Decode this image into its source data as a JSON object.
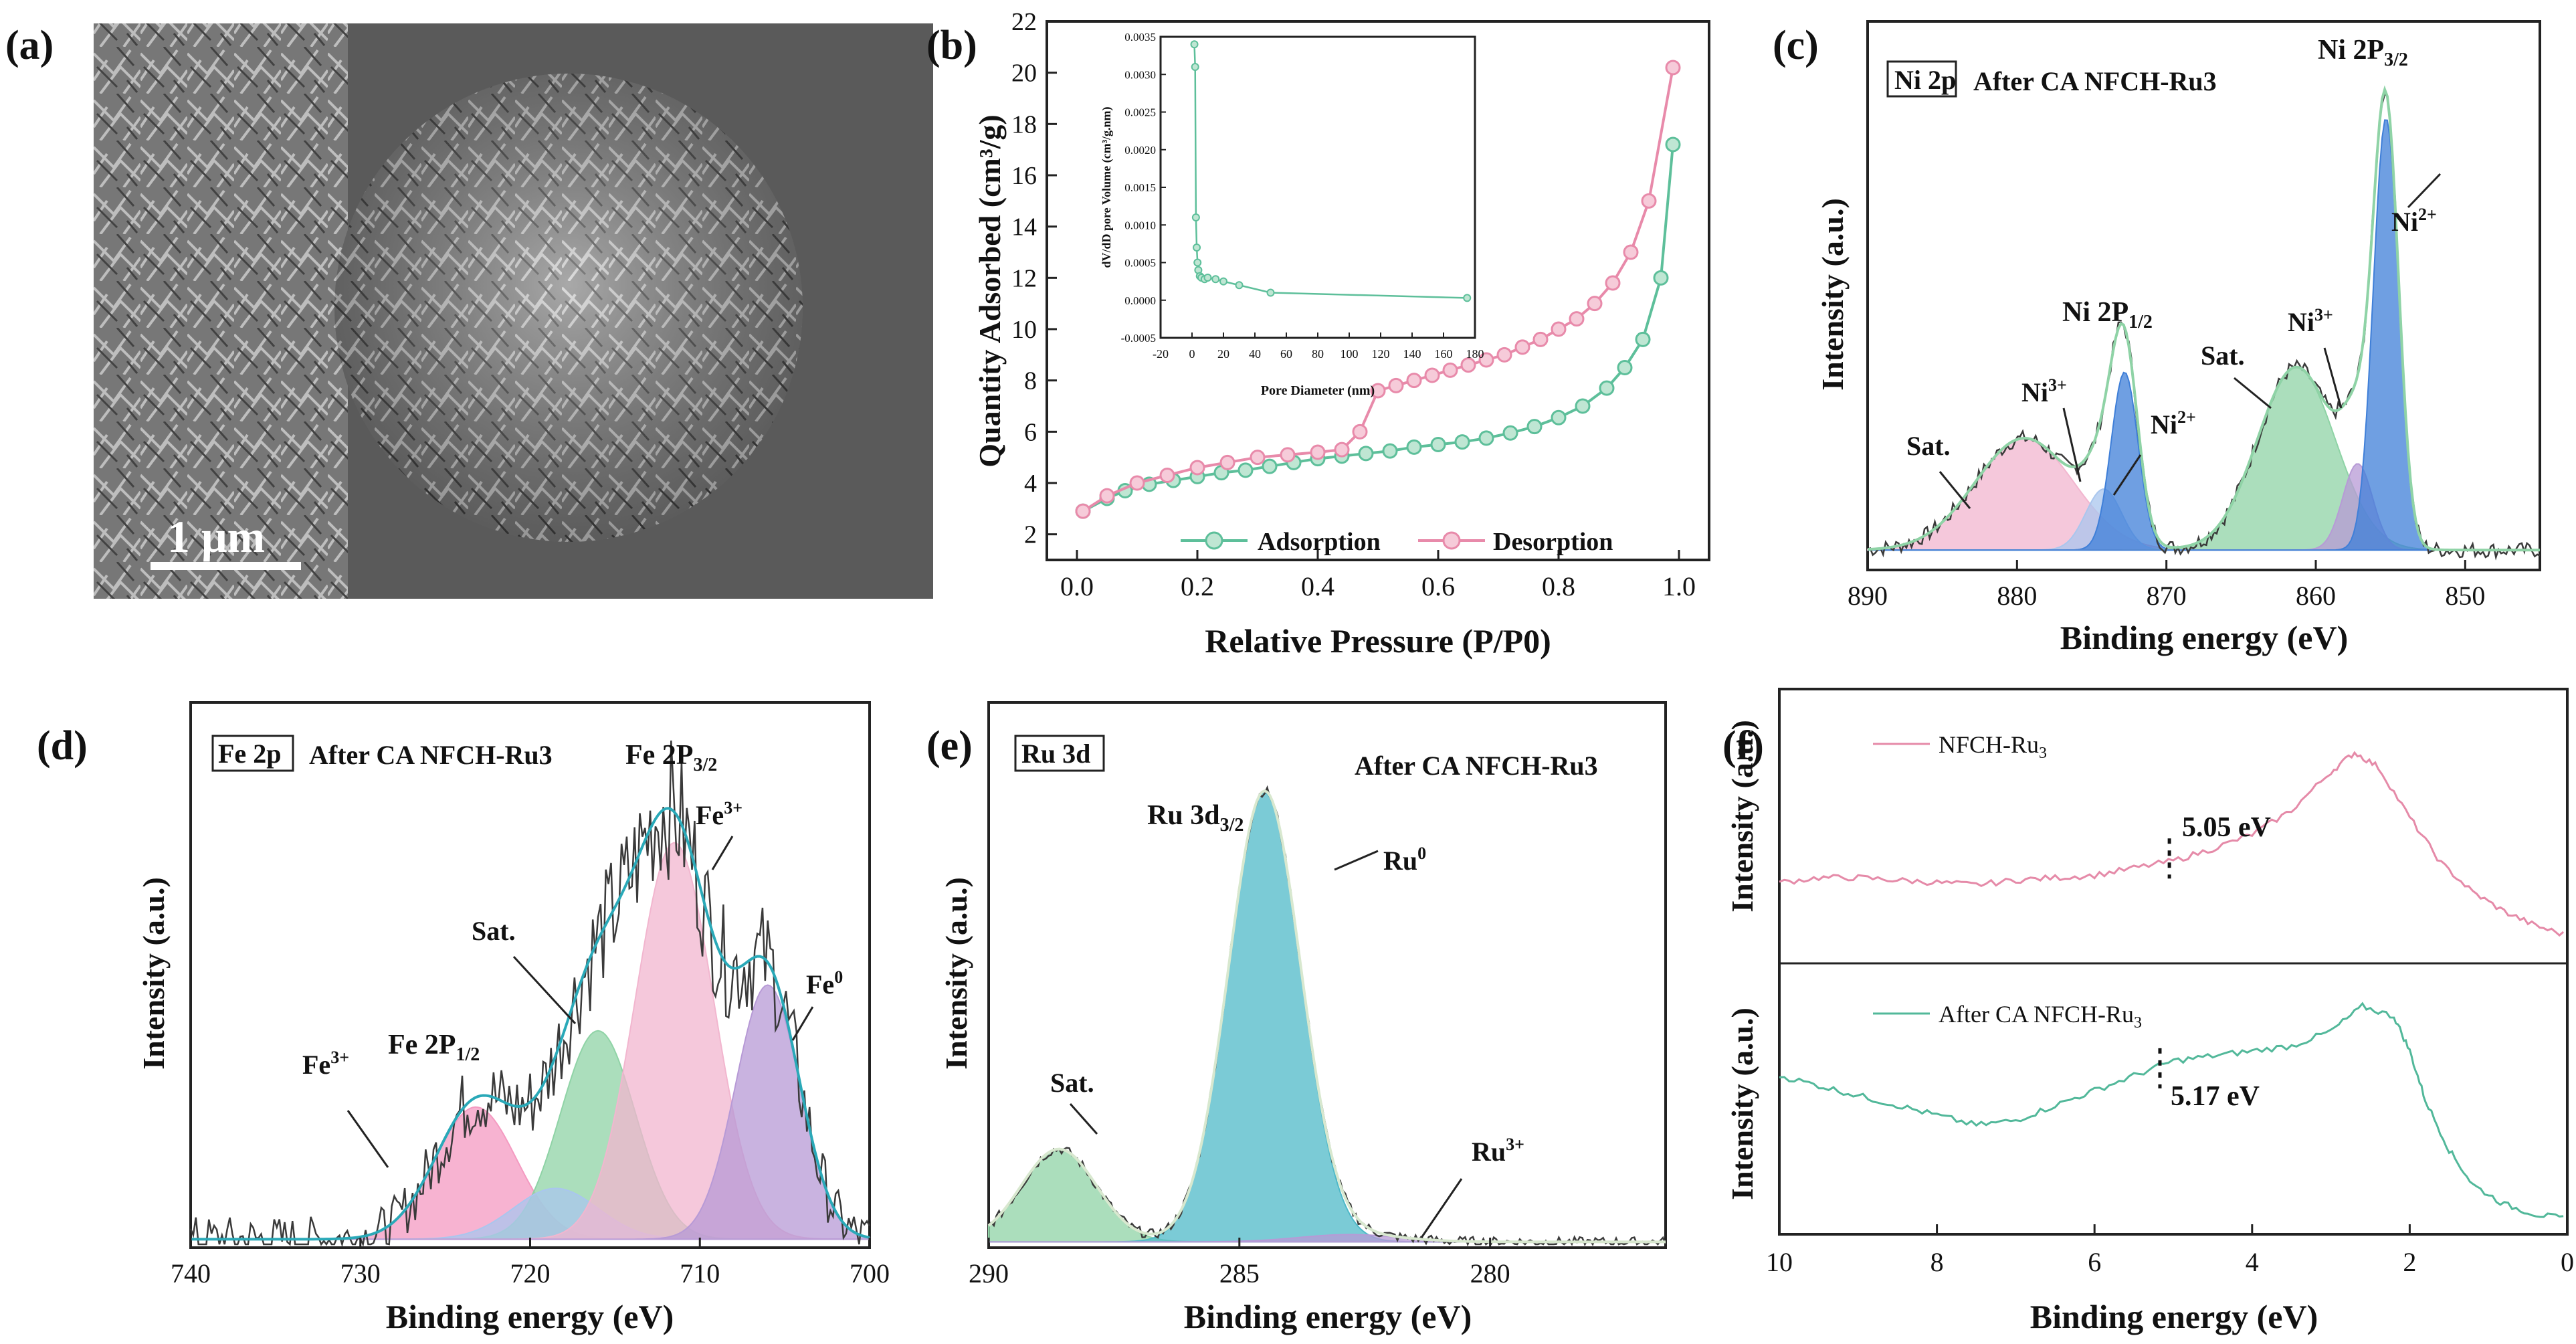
{
  "colors": {
    "adsorption": "#5dbf9a",
    "desorption": "#e88aaa",
    "noisy": "#3a3a3a",
    "fit": "#2aa9b8",
    "sat_pink": "#f2b6cf",
    "blue_light": "#a9c6ee",
    "blue_strong": "#3f7fd8",
    "green": "#8fd3a6",
    "violet": "#b79ad6",
    "pink_strong": "#f49ac1",
    "teal": "#4fb9c8",
    "ups_pink": "#e58aa8",
    "ups_teal": "#52b89a"
  },
  "panel_a": {
    "label": "(a)",
    "scale_bar": "1 μm"
  },
  "chart_data": [
    {
      "id": "b",
      "label": "(b)",
      "type": "line",
      "xlabel": "Relative Pressure (P/P0)",
      "ylabel": "Quantity Adsorbed (cm³/g)",
      "xlim": [
        -0.05,
        1.05
      ],
      "ylim": [
        1,
        22
      ],
      "xticks": [
        "0.0",
        "0.2",
        "0.4",
        "0.6",
        "0.8",
        "1.0"
      ],
      "yticks": [
        "2",
        "4",
        "6",
        "8",
        "10",
        "12",
        "14",
        "16",
        "18",
        "20",
        "22"
      ],
      "legend": [
        "Adsorption",
        "Desorption"
      ],
      "series": [
        {
          "name": "Adsorption",
          "x": [
            0.01,
            0.05,
            0.08,
            0.12,
            0.16,
            0.2,
            0.24,
            0.28,
            0.32,
            0.36,
            0.4,
            0.44,
            0.48,
            0.52,
            0.56,
            0.6,
            0.64,
            0.68,
            0.72,
            0.76,
            0.8,
            0.84,
            0.88,
            0.91,
            0.94,
            0.97,
            0.99
          ],
          "y": [
            2.9,
            3.4,
            3.7,
            3.95,
            4.1,
            4.25,
            4.4,
            4.5,
            4.65,
            4.8,
            4.95,
            5.05,
            5.15,
            5.25,
            5.4,
            5.5,
            5.6,
            5.75,
            5.95,
            6.2,
            6.55,
            7.0,
            7.7,
            8.5,
            9.6,
            12.0,
            17.2
          ]
        },
        {
          "name": "Desorption",
          "x": [
            0.99,
            0.95,
            0.92,
            0.89,
            0.86,
            0.83,
            0.8,
            0.77,
            0.74,
            0.71,
            0.68,
            0.65,
            0.62,
            0.59,
            0.56,
            0.53,
            0.5,
            0.47,
            0.44,
            0.4,
            0.35,
            0.3,
            0.25,
            0.2,
            0.15,
            0.1,
            0.05,
            0.01
          ],
          "y": [
            20.2,
            15.0,
            13.0,
            11.8,
            11.0,
            10.4,
            10.0,
            9.6,
            9.3,
            9.0,
            8.8,
            8.6,
            8.4,
            8.2,
            8.0,
            7.8,
            7.6,
            6.0,
            5.3,
            5.2,
            5.1,
            5.0,
            4.8,
            4.6,
            4.3,
            4.0,
            3.5,
            2.9
          ]
        }
      ],
      "inset": {
        "type": "line",
        "xlabel": "Pore Diameter (nm)",
        "ylabel": "dV/dD pore Volume (cm³/g.nm)",
        "xlim": [
          -20,
          180
        ],
        "ylim": [
          -0.0005,
          0.0035
        ],
        "xticks": [
          "-20",
          "0",
          "20",
          "40",
          "60",
          "80",
          "100",
          "120",
          "140",
          "160",
          "180"
        ],
        "yticks": [
          "-0.0005",
          "0.0000",
          "0.0005",
          "0.0010",
          "0.0015",
          "0.0020",
          "0.0025",
          "0.0030",
          "0.0035"
        ],
        "x": [
          1.5,
          2,
          2.5,
          3,
          3.5,
          4,
          5,
          6,
          8,
          10,
          15,
          20,
          30,
          50,
          175
        ],
        "y": [
          0.0034,
          0.0031,
          0.0011,
          0.0007,
          0.0005,
          0.0004,
          0.00032,
          0.0003,
          0.00028,
          0.0003,
          0.00028,
          0.00025,
          0.0002,
          0.0001,
          3e-05
        ]
      }
    },
    {
      "id": "c",
      "label": "(c)",
      "type": "xps",
      "tag": "Ni 2p",
      "title": "After CA NFCH-Ru3",
      "xlabel": "Binding energy (eV)",
      "ylabel": "Intensity (a.u.)",
      "xlim": [
        890,
        845
      ],
      "ylim": [
        0,
        100
      ],
      "xticks": [
        "890",
        "880",
        "870",
        "860",
        "850"
      ],
      "peaks": [
        {
          "center": 879.5,
          "height": 22,
          "width": 3.3,
          "color": "sat_pink"
        },
        {
          "center": 874.2,
          "height": 12,
          "width": 1.2,
          "color": "blue_light"
        },
        {
          "center": 872.8,
          "height": 35,
          "width": 0.9,
          "color": "blue_strong"
        },
        {
          "center": 861.3,
          "height": 36,
          "width": 2.6,
          "color": "green"
        },
        {
          "center": 857.2,
          "height": 17,
          "width": 1.0,
          "color": "violet"
        },
        {
          "center": 855.3,
          "height": 85,
          "width": 0.85,
          "color": "blue_strong"
        }
      ],
      "baseline": 3,
      "annotations": [
        "Sat.",
        "Ni3+",
        "Ni 2P1/2",
        "Ni2+",
        "Sat.",
        "Ni3+",
        "Ni 2P3/2",
        "Ni2+"
      ]
    },
    {
      "id": "d",
      "label": "(d)",
      "type": "xps",
      "tag": "Fe 2p",
      "title": "After CA NFCH-Ru3",
      "xlabel": "Binding energy (eV)",
      "ylabel": "Intensity (a.u.)",
      "xlim": [
        740,
        700
      ],
      "ylim": [
        0,
        100
      ],
      "xticks": [
        "740",
        "730",
        "720",
        "710",
        "700"
      ],
      "peaks": [
        {
          "center": 723.2,
          "height": 26,
          "width": 2.4,
          "color": "pink_strong"
        },
        {
          "center": 716.0,
          "height": 41,
          "width": 2.2,
          "color": "green"
        },
        {
          "center": 718.5,
          "height": 10,
          "width": 2.5,
          "color": "blue_light"
        },
        {
          "center": 711.5,
          "height": 78,
          "width": 2.3,
          "color": "sat_pink"
        },
        {
          "center": 706.0,
          "height": 50,
          "width": 1.9,
          "color": "violet"
        }
      ],
      "baseline": 1,
      "annotations": [
        "Fe3+",
        "Fe 2P1/2",
        "Sat.",
        "Fe 2P3/2",
        "Fe3+",
        "Fe0"
      ]
    },
    {
      "id": "e",
      "label": "(e)",
      "type": "xps",
      "tag": "Ru 3d",
      "title": "After CA NFCH-Ru3",
      "xlabel": "Binding energy (eV)",
      "ylabel": "Intensity (a.u.)",
      "xlim": [
        290,
        276.5
      ],
      "ylim": [
        0,
        100
      ],
      "xticks": [
        "290",
        "285",
        "280"
      ],
      "peaks": [
        {
          "center": 288.6,
          "height": 19,
          "width": 0.75,
          "color": "green"
        },
        {
          "center": 284.5,
          "height": 92,
          "width": 0.72,
          "color": "teal"
        },
        {
          "center": 282.8,
          "height": 1.5,
          "width": 1.0,
          "color": "violet"
        }
      ],
      "baseline": 0.5,
      "annotations": [
        "Sat.",
        "Ru 3d3/2",
        "Ru0",
        "Ru3+"
      ]
    },
    {
      "id": "f",
      "label": "(f)",
      "type": "line",
      "xlabel": "Binding energy (eV)",
      "ylabel": "Intensity (a.u.)",
      "xlim": [
        10,
        0
      ],
      "xticks": [
        "10",
        "8",
        "6",
        "4",
        "2",
        "0"
      ],
      "series": [
        {
          "name": "NFCH-Ru3",
          "value_label": "5.05 eV",
          "cutoff": 5.05,
          "x": [
            10,
            9.5,
            9,
            8.5,
            8,
            7.5,
            7,
            6.5,
            6,
            5.5,
            5,
            4.5,
            4,
            3.5,
            3,
            2.7,
            2.4,
            2,
            1.6,
            1.2,
            0.8,
            0.4,
            0
          ],
          "y": [
            0.28,
            0.3,
            0.3,
            0.29,
            0.28,
            0.27,
            0.29,
            0.3,
            0.31,
            0.34,
            0.37,
            0.42,
            0.48,
            0.58,
            0.74,
            0.82,
            0.76,
            0.55,
            0.36,
            0.24,
            0.16,
            0.1,
            0.06
          ]
        },
        {
          "name": "After CA NFCH-Ru3",
          "value_label": "5.17 eV",
          "cutoff": 5.17,
          "x": [
            10,
            9.5,
            9,
            8.5,
            8,
            7.5,
            7,
            6.5,
            6,
            5.5,
            5,
            4.5,
            4,
            3.5,
            3,
            2.6,
            2.2,
            2,
            1.8,
            1.5,
            1.2,
            0.8,
            0.4,
            0
          ],
          "y": [
            0.6,
            0.56,
            0.52,
            0.48,
            0.44,
            0.4,
            0.42,
            0.48,
            0.54,
            0.6,
            0.66,
            0.68,
            0.7,
            0.72,
            0.78,
            0.88,
            0.84,
            0.7,
            0.5,
            0.3,
            0.16,
            0.08,
            0.04,
            0.02
          ]
        }
      ]
    }
  ]
}
